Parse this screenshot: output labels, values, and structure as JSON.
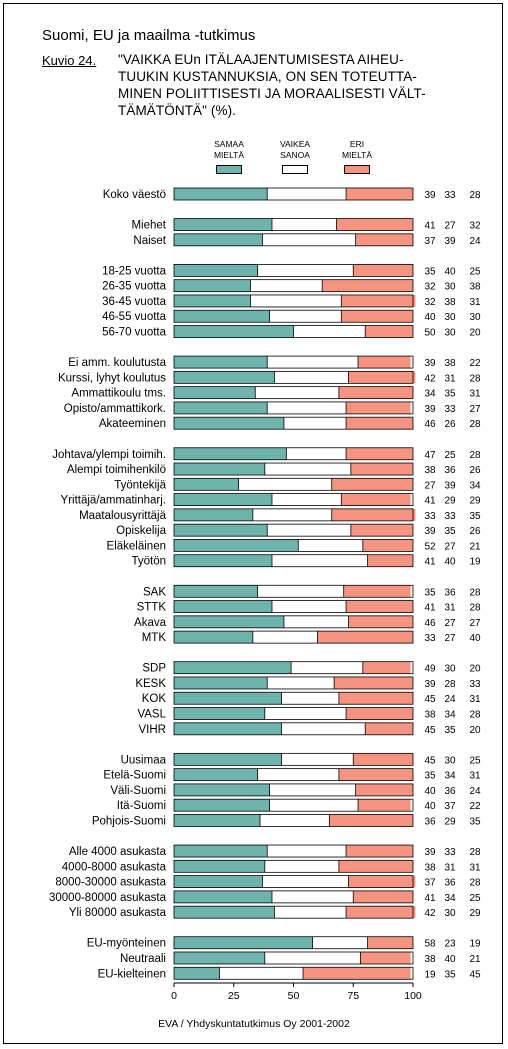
{
  "header": {
    "title": "Suomi, EU ja maailma -tutkimus",
    "figure_label": "Kuvio 24.",
    "question_lines": [
      "\"VAIKKA EUn ITÄLAAJENTUMISESTA AIHEU-",
      "TUUKIN KUSTANNUKSIA, ON SEN TOTEUTTA-",
      "MINEN POLIITTISESTI JA MORAALISESTI VÄLT-",
      "TÄMÄTÖNTÄ\" (%)."
    ]
  },
  "footer": "EVA / Yhdyskuntatutkimus Oy 2001-2002",
  "colors": {
    "agree": "#6fb3ad",
    "difficult": "#ffffff",
    "disagree": "#f59480"
  },
  "chart_data": {
    "type": "bar",
    "orientation": "horizontal",
    "stacked": true,
    "xlim": [
      0,
      100
    ],
    "xticks": [
      "0",
      "25",
      "50",
      "75",
      "100"
    ],
    "legend": [
      {
        "lines": [
          "SAMAA",
          "MIELTÄ"
        ]
      },
      {
        "lines": [
          "VAIKEA",
          "SANOA"
        ]
      },
      {
        "lines": [
          "ERI",
          "MIELTÄ"
        ]
      }
    ],
    "groups": [
      [
        {
          "label": "Koko väestö",
          "values": [
            39,
            33,
            28
          ]
        }
      ],
      [
        {
          "label": "Miehet",
          "values": [
            41,
            27,
            32
          ]
        },
        {
          "label": "Naiset",
          "values": [
            37,
            39,
            24
          ]
        }
      ],
      [
        {
          "label": "18-25 vuotta",
          "values": [
            35,
            40,
            25
          ]
        },
        {
          "label": "26-35 vuotta",
          "values": [
            32,
            30,
            38
          ]
        },
        {
          "label": "36-45 vuotta",
          "values": [
            32,
            38,
            31
          ]
        },
        {
          "label": "46-55 vuotta",
          "values": [
            40,
            30,
            30
          ]
        },
        {
          "label": "56-70 vuotta",
          "values": [
            50,
            30,
            20
          ]
        }
      ],
      [
        {
          "label": "Ei amm. koulutusta",
          "values": [
            39,
            38,
            22
          ]
        },
        {
          "label": "Kurssi, lyhyt koulutus",
          "values": [
            42,
            31,
            28
          ]
        },
        {
          "label": "Ammattikoulu tms.",
          "values": [
            34,
            35,
            31
          ]
        },
        {
          "label": "Opisto/ammattikork.",
          "values": [
            39,
            33,
            27
          ]
        },
        {
          "label": "Akateeminen",
          "values": [
            46,
            26,
            28
          ]
        }
      ],
      [
        {
          "label": "Johtava/ylempi toimih.",
          "values": [
            47,
            25,
            28
          ]
        },
        {
          "label": "Alempi toimihenkilö",
          "values": [
            38,
            36,
            26
          ]
        },
        {
          "label": "Työntekijä",
          "values": [
            27,
            39,
            34
          ]
        },
        {
          "label": "Yrittäjä/ammatinharj.",
          "values": [
            41,
            29,
            29
          ]
        },
        {
          "label": "Maatalousyrittäjä",
          "values": [
            33,
            33,
            35
          ]
        },
        {
          "label": "Opiskelija",
          "values": [
            39,
            35,
            26
          ]
        },
        {
          "label": "Eläkeläinen",
          "values": [
            52,
            27,
            21
          ]
        },
        {
          "label": "Työtön",
          "values": [
            41,
            40,
            19
          ]
        }
      ],
      [
        {
          "label": "SAK",
          "values": [
            35,
            36,
            28
          ]
        },
        {
          "label": "STTK",
          "values": [
            41,
            31,
            28
          ]
        },
        {
          "label": "Akava",
          "values": [
            46,
            27,
            27
          ]
        },
        {
          "label": "MTK",
          "values": [
            33,
            27,
            40
          ]
        }
      ],
      [
        {
          "label": "SDP",
          "values": [
            49,
            30,
            20
          ]
        },
        {
          "label": "KESK",
          "values": [
            39,
            28,
            33
          ]
        },
        {
          "label": "KOK",
          "values": [
            45,
            24,
            31
          ]
        },
        {
          "label": "VASL",
          "values": [
            38,
            34,
            28
          ]
        },
        {
          "label": "VIHR",
          "values": [
            45,
            35,
            20
          ]
        }
      ],
      [
        {
          "label": "Uusimaa",
          "values": [
            45,
            30,
            25
          ]
        },
        {
          "label": "Etelä-Suomi",
          "values": [
            35,
            34,
            31
          ]
        },
        {
          "label": "Väli-Suomi",
          "values": [
            40,
            36,
            24
          ]
        },
        {
          "label": "Itä-Suomi",
          "values": [
            40,
            37,
            22
          ]
        },
        {
          "label": "Pohjois-Suomi",
          "values": [
            36,
            29,
            35
          ]
        }
      ],
      [
        {
          "label": "Alle 4000 asukasta",
          "values": [
            39,
            33,
            28
          ]
        },
        {
          "label": "4000-8000 asukasta",
          "values": [
            38,
            31,
            31
          ]
        },
        {
          "label": "8000-30000 asukasta",
          "values": [
            37,
            36,
            28
          ]
        },
        {
          "label": "30000-80000 asukasta",
          "values": [
            41,
            34,
            25
          ]
        },
        {
          "label": "Yli 80000 asukasta",
          "values": [
            42,
            30,
            29
          ]
        }
      ],
      [
        {
          "label": "EU-myönteinen",
          "values": [
            58,
            23,
            19
          ]
        },
        {
          "label": "Neutraali",
          "values": [
            38,
            40,
            21
          ]
        },
        {
          "label": "EU-kielteinen",
          "values": [
            19,
            35,
            45
          ]
        }
      ]
    ]
  }
}
